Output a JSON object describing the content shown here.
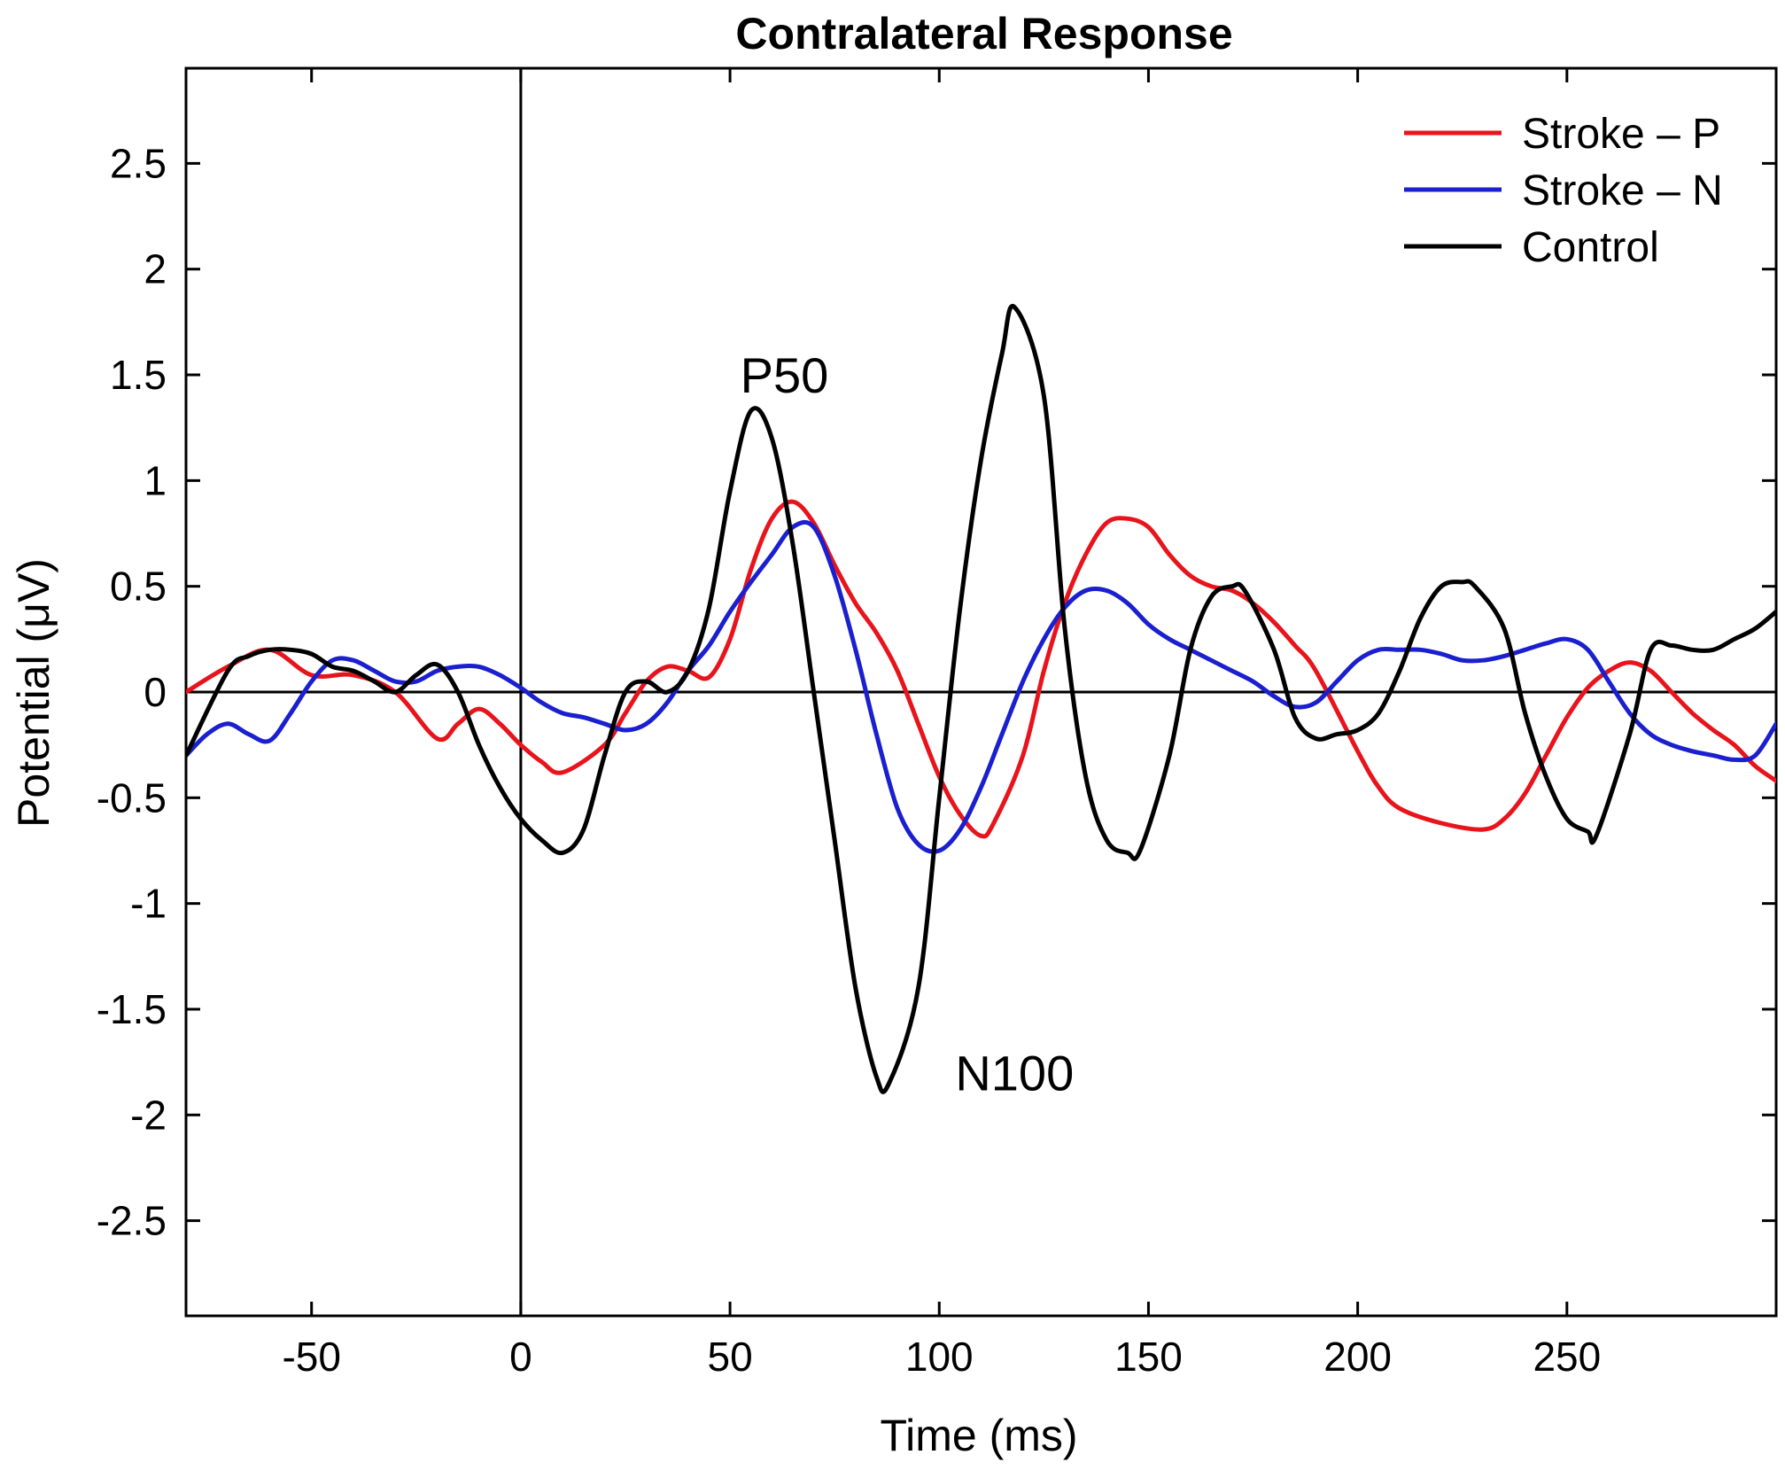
{
  "chart_data": {
    "type": "line",
    "title": "Contralateral Response",
    "xlabel": "Time (ms)",
    "ylabel": "Potential (μV)",
    "xlim": [
      -80,
      300
    ],
    "ylim": [
      -2.95,
      2.95
    ],
    "xticks": [
      -50,
      0,
      50,
      100,
      150,
      200,
      250
    ],
    "yticks": [
      -2.5,
      -2,
      -1.5,
      -1,
      -0.5,
      0,
      0.5,
      1,
      1.5,
      2,
      2.5
    ],
    "grid": false,
    "legend_position": "top-right",
    "reference_lines": {
      "x": 0,
      "y": 0
    },
    "series": [
      {
        "name": "Stroke – P",
        "color": "#e8141c",
        "x": [
          -80,
          -70,
          -60,
          -50,
          -40,
          -30,
          -20,
          -15,
          -10,
          -5,
          0,
          5,
          10,
          20,
          25,
          30,
          35,
          40,
          45,
          50,
          55,
          60,
          65,
          70,
          75,
          80,
          85,
          90,
          95,
          100,
          105,
          110,
          113,
          120,
          125,
          130,
          135,
          140,
          145,
          150,
          155,
          160,
          165,
          170,
          175,
          180,
          185,
          190,
          200,
          205,
          210,
          220,
          230,
          235,
          240,
          245,
          250,
          255,
          260,
          265,
          270,
          275,
          280,
          285,
          290,
          295,
          300
        ],
        "y": [
          0.0,
          0.12,
          0.2,
          0.08,
          0.08,
          0.0,
          -0.22,
          -0.15,
          -0.08,
          -0.15,
          -0.25,
          -0.33,
          -0.38,
          -0.25,
          -0.1,
          0.05,
          0.12,
          0.1,
          0.07,
          0.25,
          0.58,
          0.82,
          0.9,
          0.8,
          0.6,
          0.42,
          0.28,
          0.1,
          -0.15,
          -0.4,
          -0.58,
          -0.68,
          -0.62,
          -0.3,
          0.1,
          0.42,
          0.65,
          0.8,
          0.82,
          0.78,
          0.65,
          0.55,
          0.5,
          0.48,
          0.42,
          0.33,
          0.22,
          0.1,
          -0.28,
          -0.45,
          -0.55,
          -0.62,
          -0.65,
          -0.6,
          -0.48,
          -0.3,
          -0.12,
          0.02,
          0.1,
          0.14,
          0.1,
          0.0,
          -0.1,
          -0.18,
          -0.25,
          -0.35,
          -0.42
        ]
      },
      {
        "name": "Stroke – N",
        "color": "#1a1fcf",
        "x": [
          -80,
          -75,
          -70,
          -65,
          -60,
          -55,
          -50,
          -45,
          -40,
          -35,
          -30,
          -25,
          -20,
          -15,
          -10,
          -5,
          0,
          5,
          10,
          15,
          20,
          25,
          30,
          35,
          40,
          45,
          50,
          55,
          60,
          65,
          70,
          75,
          80,
          85,
          90,
          95,
          100,
          105,
          110,
          115,
          120,
          125,
          130,
          135,
          140,
          145,
          150,
          155,
          160,
          165,
          170,
          175,
          180,
          185,
          190,
          195,
          200,
          205,
          210,
          215,
          220,
          225,
          230,
          235,
          240,
          245,
          250,
          255,
          260,
          265,
          270,
          275,
          280,
          285,
          290,
          295,
          300
        ],
        "y": [
          -0.3,
          -0.2,
          -0.15,
          -0.2,
          -0.23,
          -0.1,
          0.05,
          0.15,
          0.15,
          0.1,
          0.05,
          0.05,
          0.1,
          0.12,
          0.12,
          0.08,
          0.02,
          -0.05,
          -0.1,
          -0.12,
          -0.15,
          -0.18,
          -0.15,
          -0.05,
          0.1,
          0.22,
          0.38,
          0.52,
          0.65,
          0.78,
          0.78,
          0.55,
          0.2,
          -0.2,
          -0.55,
          -0.72,
          -0.75,
          -0.65,
          -0.45,
          -0.2,
          0.05,
          0.25,
          0.4,
          0.48,
          0.48,
          0.42,
          0.32,
          0.25,
          0.2,
          0.15,
          0.1,
          0.05,
          -0.02,
          -0.07,
          -0.05,
          0.05,
          0.15,
          0.2,
          0.2,
          0.2,
          0.18,
          0.15,
          0.15,
          0.17,
          0.2,
          0.23,
          0.25,
          0.2,
          0.05,
          -0.1,
          -0.2,
          -0.25,
          -0.28,
          -0.3,
          -0.32,
          -0.3,
          -0.15
        ]
      },
      {
        "name": "Control",
        "color": "#000000",
        "x": [
          -80,
          -70,
          -65,
          -60,
          -55,
          -50,
          -45,
          -40,
          -35,
          -30,
          -25,
          -20,
          -15,
          -10,
          -5,
          0,
          5,
          10,
          15,
          20,
          25,
          30,
          35,
          40,
          45,
          50,
          55,
          60,
          65,
          70,
          75,
          80,
          85,
          88,
          95,
          100,
          105,
          110,
          115,
          118,
          125,
          130,
          135,
          140,
          145,
          148,
          155,
          160,
          165,
          170,
          173,
          180,
          185,
          190,
          195,
          200,
          205,
          210,
          215,
          220,
          225,
          228,
          235,
          240,
          245,
          250,
          255,
          257,
          265,
          270,
          275,
          280,
          285,
          290,
          295,
          300
        ],
        "y": [
          -0.3,
          0.1,
          0.17,
          0.2,
          0.2,
          0.18,
          0.12,
          0.1,
          0.05,
          0.0,
          0.08,
          0.13,
          0.0,
          -0.25,
          -0.45,
          -0.6,
          -0.7,
          -0.76,
          -0.65,
          -0.3,
          0.0,
          0.05,
          0.0,
          0.1,
          0.4,
          0.95,
          1.33,
          1.2,
          0.7,
          0.0,
          -0.7,
          -1.4,
          -1.82,
          -1.85,
          -1.4,
          -0.5,
          0.4,
          1.1,
          1.6,
          1.82,
          1.4,
          0.3,
          -0.4,
          -0.7,
          -0.76,
          -0.75,
          -0.3,
          0.2,
          0.45,
          0.5,
          0.48,
          0.2,
          -0.12,
          -0.22,
          -0.2,
          -0.18,
          -0.1,
          0.1,
          0.35,
          0.5,
          0.52,
          0.5,
          0.3,
          -0.1,
          -0.4,
          -0.6,
          -0.66,
          -0.68,
          -0.2,
          0.2,
          0.22,
          0.2,
          0.2,
          0.25,
          0.3,
          0.38
        ]
      }
    ],
    "annotations": [
      {
        "text": "P50",
        "x": 63,
        "y": 1.5
      },
      {
        "text": "N100",
        "x": 118,
        "y": -1.8
      }
    ]
  }
}
